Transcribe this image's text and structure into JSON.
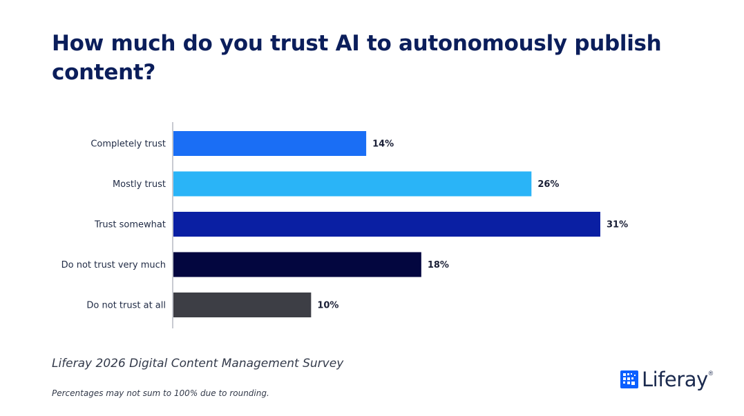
{
  "title": "How much do you trust AI to autonomously publish content?",
  "source": "Liferay 2026 Digital Content Management Survey",
  "note": "Percentages may not sum to 100% due to rounding.",
  "logo": {
    "text": "Liferay",
    "mark": "®",
    "icon": "liferay-grid-icon"
  },
  "chart_data": {
    "type": "bar",
    "orientation": "horizontal",
    "title": "How much do you trust AI to autonomously publish content?",
    "categories": [
      "Completely trust",
      "Mostly trust",
      "Trust somewhat",
      "Do not trust very much",
      "Do not trust at all"
    ],
    "values": [
      14,
      26,
      31,
      18,
      10
    ],
    "value_labels": [
      "14%",
      "26%",
      "31%",
      "18%",
      "10%"
    ],
    "colors": [
      "#1a6ef5",
      "#2ab4f7",
      "#0a1fa3",
      "#03063f",
      "#3d3e45"
    ],
    "unit": "%",
    "xlabel": "",
    "ylabel": "",
    "xlim": [
      0,
      31
    ],
    "grid": false,
    "legend": "none"
  }
}
